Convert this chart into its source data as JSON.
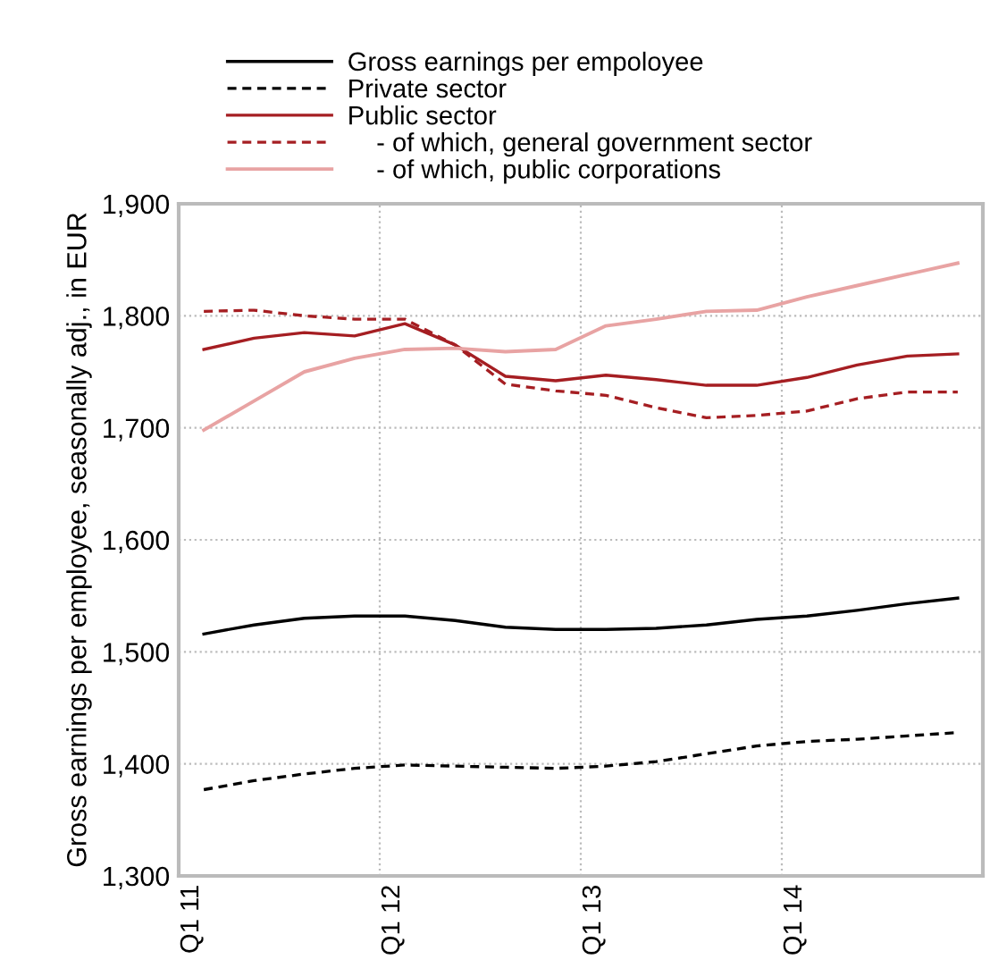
{
  "chart_data": {
    "type": "line",
    "ylabel": "Gross earnings per employee, seasonally adj., in EUR",
    "categories": [
      "Q1 11",
      null,
      null,
      null,
      "Q1 12",
      null,
      null,
      null,
      "Q1 13",
      null,
      null,
      null,
      "Q1 14",
      null,
      null,
      null
    ],
    "series": [
      {
        "name": "Gross earnings per empoloyee",
        "color": "#000000",
        "line_style": "solid",
        "values": [
          1516,
          1524,
          1530,
          1532,
          1532,
          1528,
          1522,
          1520,
          1520,
          1521,
          1524,
          1529,
          1532,
          1537,
          1543,
          1548
        ]
      },
      {
        "name": "Private sector",
        "color": "#000000",
        "line_style": "dashed",
        "values": [
          1377,
          1385,
          1391,
          1396,
          1399,
          1398,
          1397,
          1396,
          1398,
          1402,
          1409,
          1416,
          1420,
          1422,
          1425,
          1428
        ]
      },
      {
        "name": "Public sector",
        "color": "#a51e22",
        "line_style": "solid",
        "values": [
          1770,
          1780,
          1785,
          1782,
          1793,
          1774,
          1746,
          1742,
          1747,
          1743,
          1738,
          1738,
          1745,
          1756,
          1764,
          1766
        ]
      },
      {
        "name": "    - of which, general government sector",
        "color": "#a51e22",
        "line_style": "dashed",
        "values": [
          1804,
          1805,
          1800,
          1797,
          1797,
          1774,
          1739,
          1733,
          1729,
          1718,
          1709,
          1711,
          1715,
          1726,
          1732,
          1732
        ]
      },
      {
        "name": "    - of which, public corporations",
        "color": "#e8a3a3",
        "line_style": "solid",
        "values": [
          1698,
          1724,
          1750,
          1762,
          1770,
          1771,
          1768,
          1770,
          1791,
          1797,
          1804,
          1805,
          1817,
          1827,
          1837,
          1847
        ]
      }
    ],
    "ylim": [
      1300,
      1900
    ],
    "yticks": [
      {
        "value": 1300,
        "label": "1,300"
      },
      {
        "value": 1400,
        "label": "1,400"
      },
      {
        "value": 1500,
        "label": "1,500"
      },
      {
        "value": 1600,
        "label": "1,600"
      },
      {
        "value": 1700,
        "label": "1,700"
      },
      {
        "value": 1800,
        "label": "1,800"
      },
      {
        "value": 1900,
        "label": "1,900"
      }
    ],
    "grid": true,
    "legend": "top",
    "marker": "none"
  }
}
